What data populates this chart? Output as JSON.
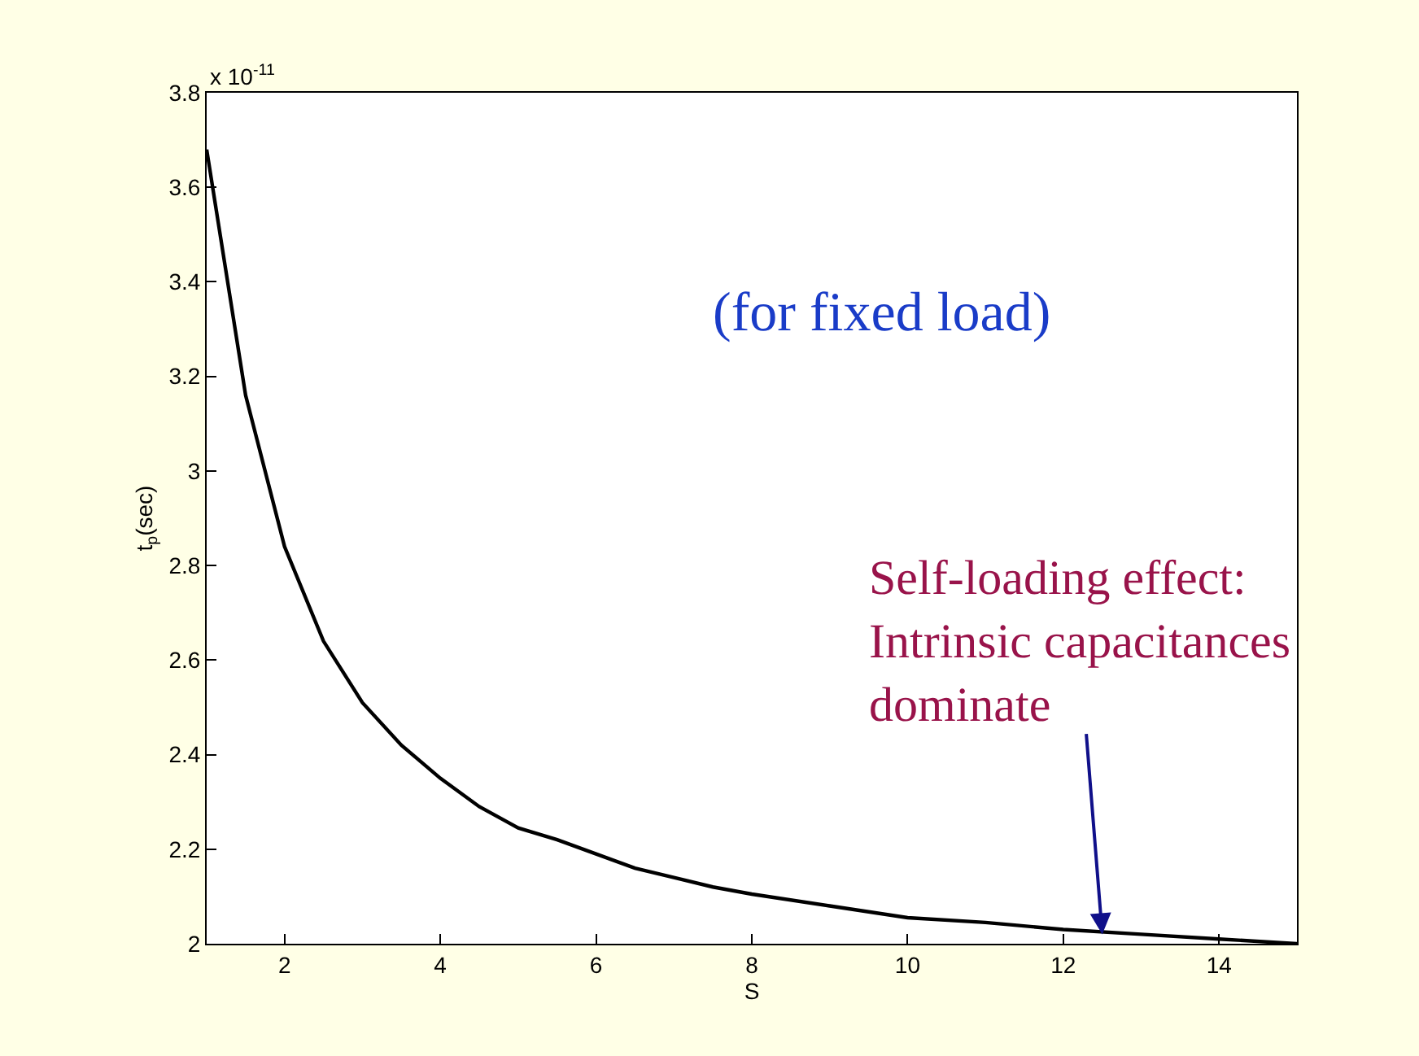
{
  "chart_data": {
    "type": "line",
    "xlabel": "S",
    "ylabel": "t$_{p}$(sec)",
    "x": [
      1,
      1.5,
      2,
      2.5,
      3,
      3.5,
      4,
      4.5,
      5,
      5.5,
      6,
      6.5,
      7,
      7.5,
      8,
      9,
      10,
      11,
      12,
      13,
      14,
      15
    ],
    "series": [
      {
        "color": "#000000",
        "values": [
          3.68,
          3.16,
          2.84,
          2.64,
          2.51,
          2.42,
          2.35,
          2.29,
          2.245,
          2.22,
          2.19,
          2.16,
          2.14,
          2.12,
          2.105,
          2.08,
          2.055,
          2.045,
          2.03,
          2.02,
          2.01,
          2.0
        ]
      }
    ],
    "xlim": [
      1,
      15
    ],
    "xticks": [
      2,
      4,
      6,
      8,
      10,
      12,
      14
    ],
    "ylim": [
      2,
      3.8
    ],
    "yticks": [
      2,
      2.2,
      2.4,
      2.6,
      2.8,
      3,
      3.2,
      3.4,
      3.6,
      3.8
    ],
    "annotations": [
      "x 10$^{-11}$",
      "(for fixed load)",
      {
        "text": "Self-loading effect:\nIntrinsic capacitances\ndominate",
        "x": 12.5,
        "y": 2.02
      }
    ],
    "marker": "none",
    "line_style": "solid"
  }
}
